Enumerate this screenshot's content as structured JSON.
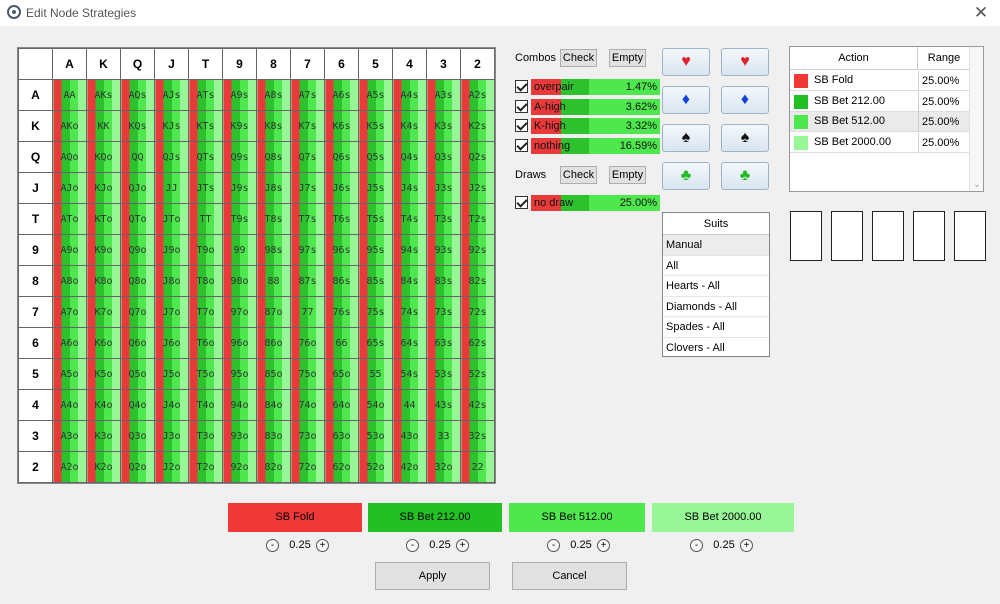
{
  "window": {
    "title": "Edit Node Strategies",
    "close_label": "✕"
  },
  "grid": {
    "ranks": [
      "A",
      "K",
      "Q",
      "J",
      "T",
      "9",
      "8",
      "7",
      "6",
      "5",
      "4",
      "3",
      "2"
    ],
    "rows": [
      [
        "AA",
        "AKs",
        "AQs",
        "AJs",
        "ATs",
        "A9s",
        "A8s",
        "A7s",
        "A6s",
        "A5s",
        "A4s",
        "A3s",
        "A2s"
      ],
      [
        "AKo",
        "KK",
        "KQs",
        "KJs",
        "KTs",
        "K9s",
        "K8s",
        "K7s",
        "K6s",
        "K5s",
        "K4s",
        "K3s",
        "K2s"
      ],
      [
        "AQo",
        "KQo",
        "QQ",
        "QJs",
        "QTs",
        "Q9s",
        "Q8s",
        "Q7s",
        "Q6s",
        "Q5s",
        "Q4s",
        "Q3s",
        "Q2s"
      ],
      [
        "AJo",
        "KJo",
        "QJo",
        "JJ",
        "JTs",
        "J9s",
        "J8s",
        "J7s",
        "J6s",
        "J5s",
        "J4s",
        "J3s",
        "J2s"
      ],
      [
        "ATo",
        "KTo",
        "QTo",
        "JTo",
        "TT",
        "T9s",
        "T8s",
        "T7s",
        "T6s",
        "T5s",
        "T4s",
        "T3s",
        "T2s"
      ],
      [
        "A9o",
        "K9o",
        "Q9o",
        "J9o",
        "T9o",
        "99",
        "98s",
        "97s",
        "96s",
        "95s",
        "94s",
        "93s",
        "92s"
      ],
      [
        "A8o",
        "K8o",
        "Q8o",
        "J8o",
        "T8o",
        "98o",
        "88",
        "87s",
        "86s",
        "85s",
        "84s",
        "83s",
        "82s"
      ],
      [
        "A7o",
        "K7o",
        "Q7o",
        "J7o",
        "T7o",
        "97o",
        "87o",
        "77",
        "76s",
        "75s",
        "74s",
        "73s",
        "72s"
      ],
      [
        "A6o",
        "K6o",
        "Q6o",
        "J6o",
        "T6o",
        "96o",
        "86o",
        "76o",
        "66",
        "65s",
        "64s",
        "63s",
        "62s"
      ],
      [
        "A5o",
        "K5o",
        "Q5o",
        "J5o",
        "T5o",
        "95o",
        "85o",
        "75o",
        "65o",
        "55",
        "54s",
        "53s",
        "52s"
      ],
      [
        "A4o",
        "K4o",
        "Q4o",
        "J4o",
        "T4o",
        "94o",
        "84o",
        "74o",
        "64o",
        "54o",
        "44",
        "43s",
        "42s"
      ],
      [
        "A3o",
        "K3o",
        "Q3o",
        "J3o",
        "T3o",
        "93o",
        "83o",
        "73o",
        "63o",
        "53o",
        "43o",
        "33",
        "32s"
      ],
      [
        "A2o",
        "K2o",
        "Q2o",
        "J2o",
        "T2o",
        "92o",
        "82o",
        "72o",
        "62o",
        "52o",
        "42o",
        "32o",
        "22"
      ]
    ]
  },
  "combos": {
    "label": "Combos",
    "check_label": "Check",
    "empty_label": "Empty",
    "items": [
      {
        "label": "overpair",
        "pct": "1.47%"
      },
      {
        "label": "A-high",
        "pct": "3.62%"
      },
      {
        "label": "K-high",
        "pct": "3.32%"
      },
      {
        "label": "nothing",
        "pct": "16.59%"
      }
    ]
  },
  "draws": {
    "label": "Draws",
    "check_label": "Check",
    "empty_label": "Empty",
    "items": [
      {
        "label": "no draw",
        "pct": "25.00%"
      }
    ]
  },
  "suit_buttons": [
    {
      "symbol": "♥",
      "color": "#e0202a",
      "name": "hearts"
    },
    {
      "symbol": "♦",
      "color": "#1040e0",
      "name": "diamonds"
    },
    {
      "symbol": "♠",
      "color": "#111111",
      "name": "spades"
    },
    {
      "symbol": "♣",
      "color": "#22bb22",
      "name": "clubs"
    }
  ],
  "suits": {
    "header": "Suits",
    "items": [
      "Manual",
      "All",
      "Hearts - All",
      "Diamonds - All",
      "Spades - All",
      "Clovers - All"
    ]
  },
  "actions": {
    "header_action": "Action",
    "header_range": "Range",
    "rows": [
      {
        "name": "SB Fold",
        "range": "25.00%",
        "color": "#f03838"
      },
      {
        "name": "SB Bet 212.00",
        "range": "25.00%",
        "color": "#22c022"
      },
      {
        "name": "SB Bet 512.00",
        "range": "25.00%",
        "color": "#4ee84e"
      },
      {
        "name": "SB Bet 2000.00",
        "range": "25.00%",
        "color": "#98f598"
      }
    ]
  },
  "weights": [
    {
      "label": "SB Fold",
      "value": "0.25",
      "bg": "#f03838"
    },
    {
      "label": "SB Bet 212.00",
      "value": "0.25",
      "bg": "#22c022"
    },
    {
      "label": "SB Bet 512.00",
      "value": "0.25",
      "bg": "#4ee84e"
    },
    {
      "label": "SB Bet 2000.00",
      "value": "0.25",
      "bg": "#98f598"
    }
  ],
  "buttons": {
    "apply": "Apply",
    "cancel": "Cancel"
  }
}
